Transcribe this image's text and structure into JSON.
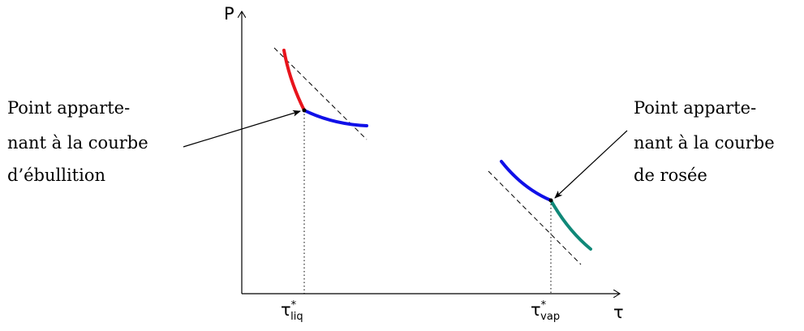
{
  "axes": {
    "y_label": "P",
    "x_label": "τ"
  },
  "ticks": {
    "liq": {
      "base": "τ",
      "sup": "*",
      "sub": "liq"
    },
    "vap": {
      "base": "τ",
      "sup": "*",
      "sub": "vap"
    }
  },
  "annotations": {
    "left": [
      "Point apparte-",
      "nant à la courbe",
      "d’ébullition"
    ],
    "right": [
      "Point apparte-",
      "nant à la courbe",
      "de rosée"
    ]
  },
  "colors": {
    "red_curve": "#e8141c",
    "blue_curve": "#1010e8",
    "teal_curve": "#108878"
  }
}
